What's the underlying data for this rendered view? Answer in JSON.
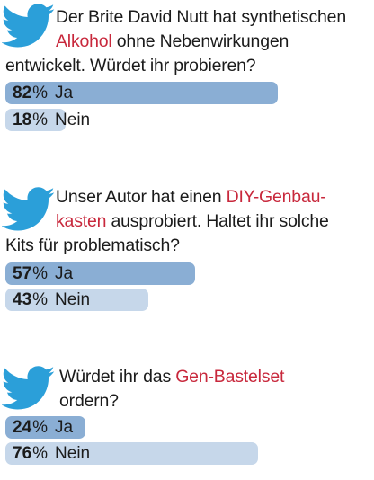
{
  "colors": {
    "bar_primary": "#8aaed4",
    "bar_secondary": "#c6d7ea",
    "highlight": "#c8283c",
    "bird": "#2b9fd9"
  },
  "polls": [
    {
      "question": {
        "line1": "Der Brite David Nutt hat synthetischen",
        "line2_highlight": "Alkohol",
        "line2_rest": " ohne Nebenwirkungen",
        "line3": "entwickelt. Würdet ihr probieren?"
      },
      "options": [
        {
          "percent": "82",
          "percent_sign": "%",
          "label": "Ja",
          "share": 0.82
        },
        {
          "percent": "18",
          "percent_sign": "%",
          "label": "Nein",
          "share": 0.18
        }
      ]
    },
    {
      "question": {
        "line1_pre": "Unser Autor hat einen ",
        "line1_highlight": "DIY-Genbau-",
        "line2_highlight": "kasten",
        "line2_rest": " ausprobiert. Haltet ihr solche",
        "line3": "Kits für problematisch?"
      },
      "options": [
        {
          "percent": "57",
          "percent_sign": "%",
          "label": "Ja",
          "share": 0.57
        },
        {
          "percent": "43",
          "percent_sign": "%",
          "label": "Nein",
          "share": 0.43
        }
      ]
    },
    {
      "question": {
        "line1_pre": "Würdet ihr das ",
        "line1_highlight": "Gen-Bastelset",
        "line2": "ordern?"
      },
      "options": [
        {
          "percent": "24",
          "percent_sign": "%",
          "label": "Ja",
          "share": 0.24
        },
        {
          "percent": "76",
          "percent_sign": "%",
          "label": "Nein",
          "share": 0.76
        }
      ]
    }
  ]
}
